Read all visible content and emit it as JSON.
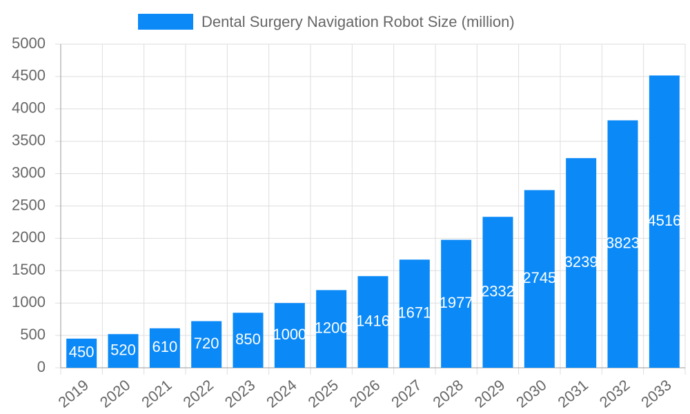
{
  "chart_data": {
    "type": "bar",
    "categories": [
      "2019",
      "2020",
      "2021",
      "2022",
      "2023",
      "2024",
      "2025",
      "2026",
      "2027",
      "2028",
      "2029",
      "2030",
      "2031",
      "2032",
      "2033"
    ],
    "series": [
      {
        "name": "Dental Surgery Navigation Robot Size (million)",
        "color": "#0a89f7",
        "values": [
          450,
          520,
          610,
          720,
          850,
          1000,
          1200,
          1416,
          1671,
          1977,
          2332,
          2745,
          3239,
          3823,
          4516
        ]
      }
    ],
    "ylim": [
      0,
      5000
    ],
    "yticks": [
      0,
      500,
      1000,
      1500,
      2000,
      2500,
      3000,
      3500,
      4000,
      4500,
      5000
    ],
    "grid": true,
    "legend": "top",
    "data_labels": true
  }
}
